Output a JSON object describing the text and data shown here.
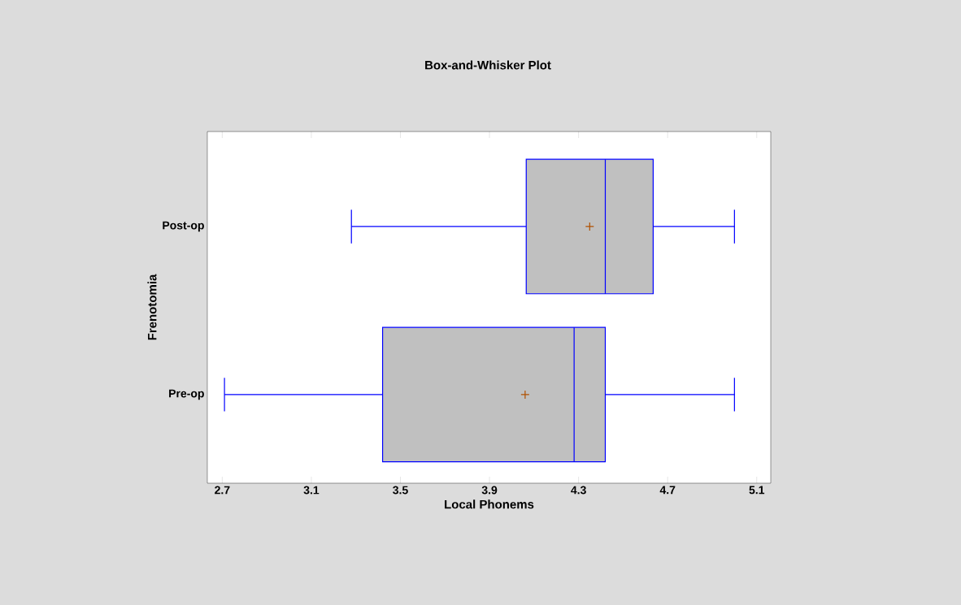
{
  "chart_data": {
    "type": "box",
    "orientation": "horizontal",
    "title": "Box-and-Whisker Plot",
    "xlabel": "Local Phonems",
    "ylabel": "Frenotomia",
    "categories": [
      "Post-op",
      "Pre-op"
    ],
    "color": "#c0c0c0",
    "boxes": [
      {
        "low": 3.28,
        "q1": 4.065,
        "median": 4.42,
        "q3": 4.635,
        "high": 5.0,
        "mean": 4.35
      },
      {
        "low": 2.71,
        "q1": 3.42,
        "median": 4.28,
        "q3": 4.42,
        "high": 5.0,
        "mean": 4.06
      }
    ],
    "xlim": [
      2.633,
      5.163
    ],
    "xticks": [
      2.7,
      3.1,
      3.5,
      3.9,
      4.3,
      4.7,
      5.1
    ]
  }
}
